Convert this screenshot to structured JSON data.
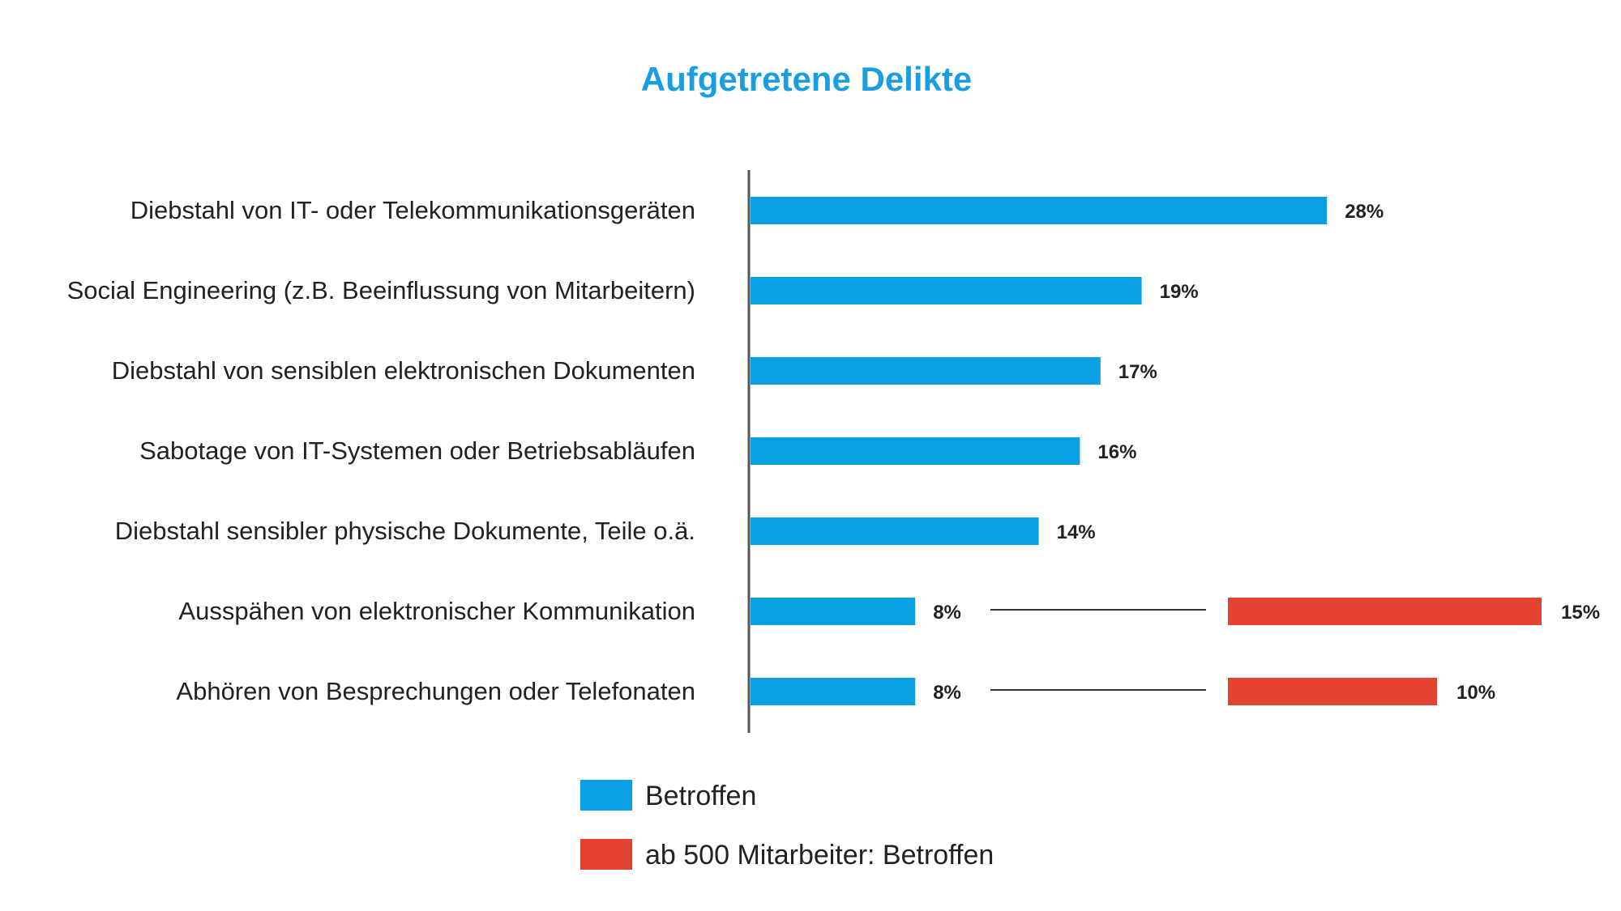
{
  "chart_data": {
    "type": "bar",
    "orientation": "horizontal",
    "title": "Aufgetretene Delikte",
    "categories": [
      "Diebstahl von IT- oder Telekommunikationsgeräten",
      "Social Engineering (z.B. Beeinflussung von Mitarbeitern)",
      "Diebstahl von sensiblen elektronischen Dokumenten",
      "Sabotage von IT-Systemen oder Betriebsabläufen",
      "Diebstahl sensibler physische Dokumente, Teile o.ä.",
      "Ausspähen von elektronischer Kommunikation",
      "Abhören von Besprechungen oder Telefonaten"
    ],
    "series": [
      {
        "name": "Betroffen",
        "values": [
          28,
          19,
          17,
          16,
          14,
          8,
          8
        ],
        "labels": [
          "28%",
          "19%",
          "17%",
          "16%",
          "14%",
          "8%",
          "8%"
        ]
      },
      {
        "name": "ab 500 Mitarbeiter: Betroffen",
        "values": [
          null,
          null,
          null,
          null,
          null,
          15,
          10
        ],
        "labels": [
          null,
          null,
          null,
          null,
          null,
          "15%",
          "10%"
        ]
      }
    ],
    "xlabel": "",
    "ylabel": "",
    "grid": false,
    "legend_position": "bottom-center",
    "colors": {
      "title": "#1a9ee0",
      "betroffen": "#0b9fe3",
      "ab500": "#e44332",
      "axis": "#555555",
      "connector": "#333333"
    }
  }
}
